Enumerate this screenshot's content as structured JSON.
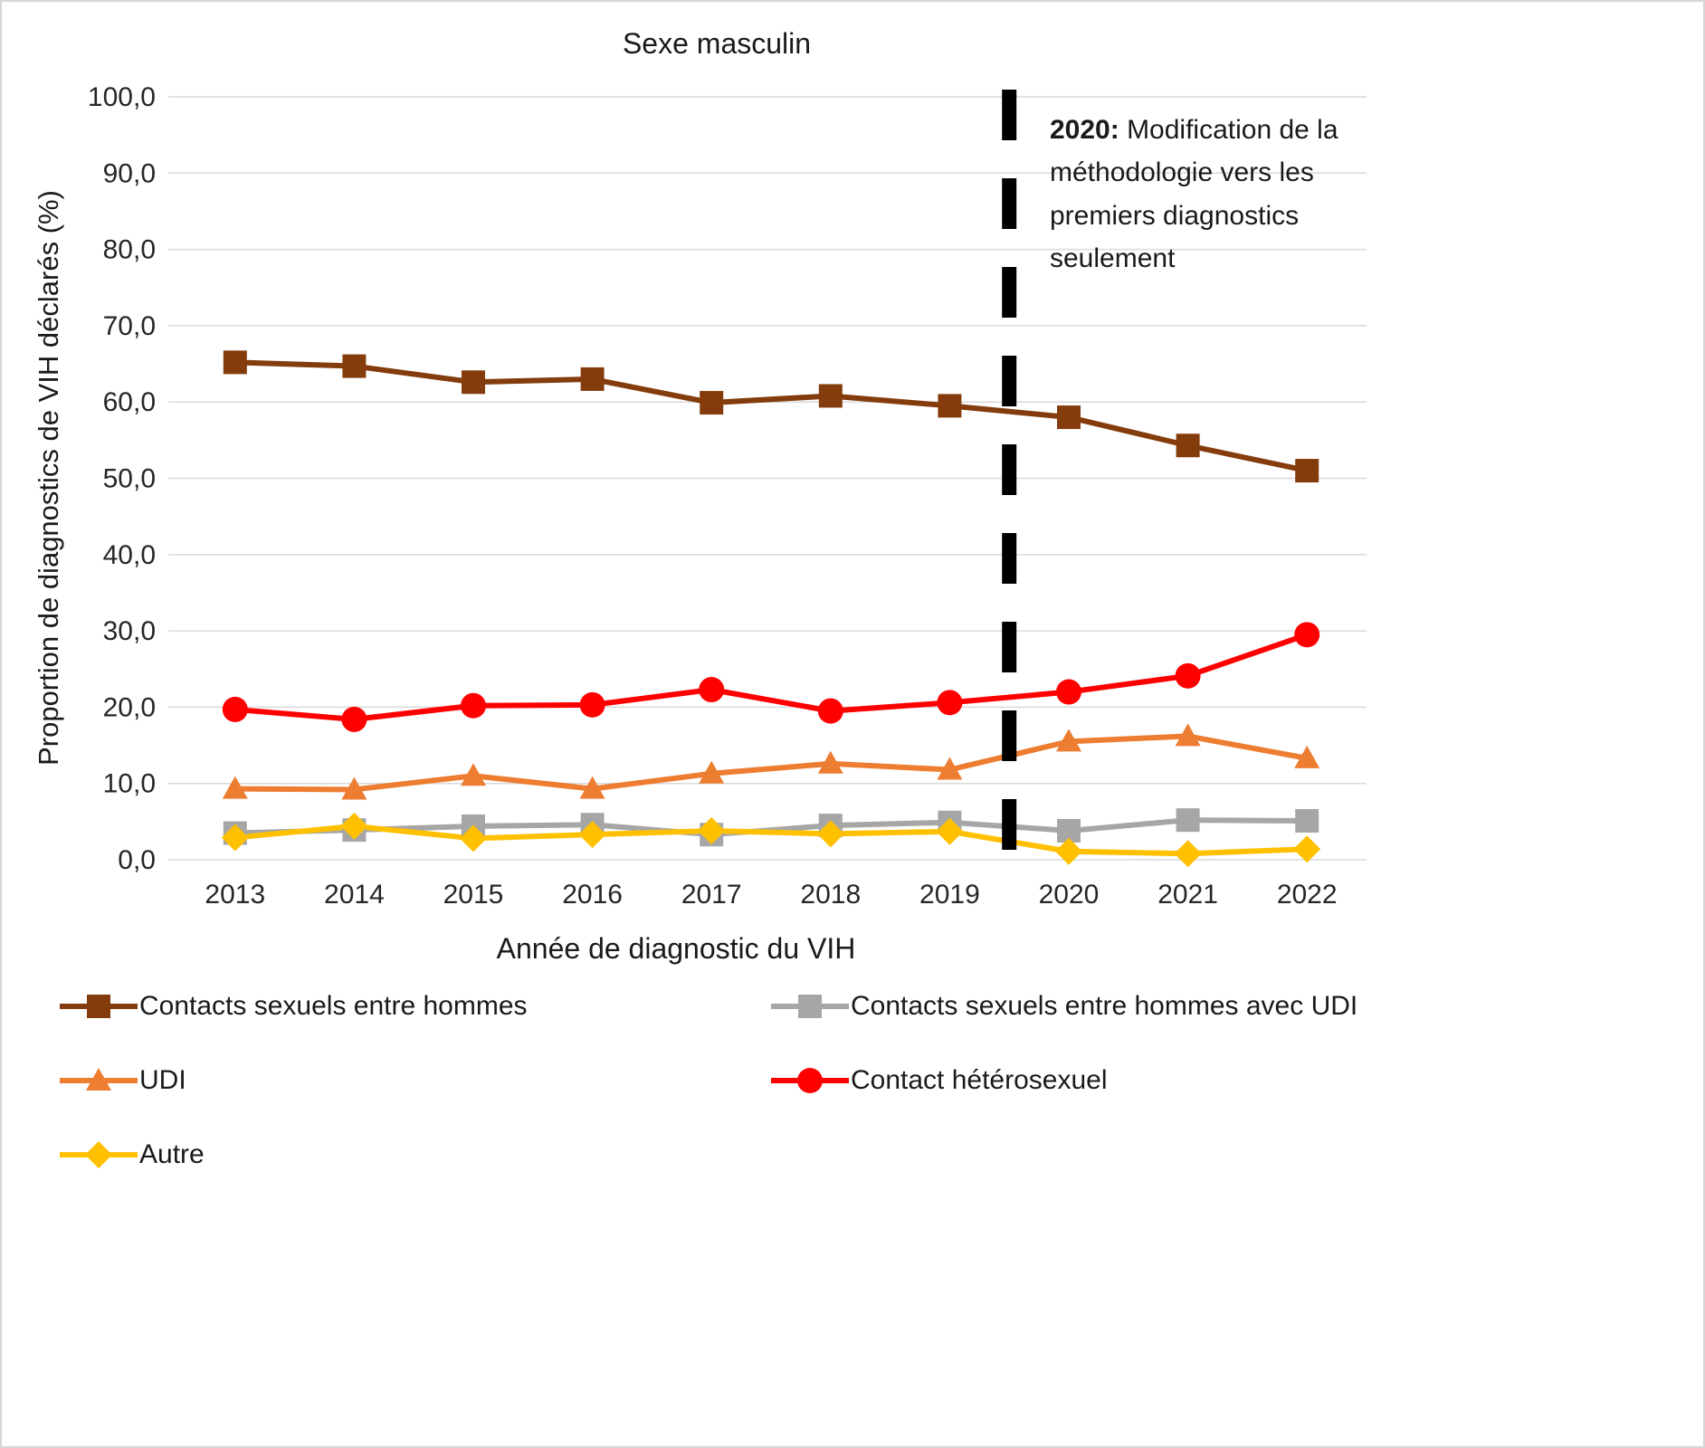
{
  "chart_data": {
    "type": "line",
    "title": "Sexe masculin",
    "xlabel": "Année de diagnostic du VIH",
    "ylabel": "Proportion de diagnostics de VIH déclarés (%)",
    "ylim": [
      0,
      100
    ],
    "ytick_step": 10,
    "ytick_labels": [
      "0,0",
      "10,0",
      "20,0",
      "30,0",
      "40,0",
      "50,0",
      "60,0",
      "70,0",
      "80,0",
      "90,0",
      "100,0"
    ],
    "categories": [
      "2013",
      "2014",
      "2015",
      "2016",
      "2017",
      "2018",
      "2019",
      "2020",
      "2021",
      "2022"
    ],
    "grid": "horizontal",
    "gridline_color": "#d9d9d9",
    "legend_position": "bottom",
    "annotation": {
      "bold": "2020:",
      "text": " Modification de la méthodologie vers les premiers diagnostics seulement",
      "dashed_line_between": [
        "2019",
        "2020"
      ],
      "dashed_line_after_index": 6,
      "line_color": "#000000"
    },
    "series": [
      {
        "name": "Contacts sexuels entre hommes",
        "color": "#843C0C",
        "marker": "square",
        "values": [
          65.2,
          64.7,
          62.6,
          63.0,
          59.9,
          60.8,
          59.5,
          58.0,
          54.3,
          51.0
        ]
      },
      {
        "name": "Contacts sexuels entre hommes avec UDI",
        "color": "#A6A6A6",
        "marker": "square",
        "values": [
          3.5,
          3.9,
          4.4,
          4.6,
          3.3,
          4.5,
          4.9,
          3.8,
          5.2,
          5.1
        ]
      },
      {
        "name": "UDI",
        "color": "#ED7D31",
        "marker": "triangle",
        "values": [
          9.3,
          9.2,
          11.0,
          9.3,
          11.3,
          12.6,
          11.8,
          15.5,
          16.2,
          13.3
        ]
      },
      {
        "name": "Contact hétérosexuel",
        "color": "#FF0000",
        "marker": "circle",
        "values": [
          19.7,
          18.4,
          20.2,
          20.3,
          22.3,
          19.5,
          20.6,
          22.0,
          24.1,
          29.5
        ]
      },
      {
        "name": "Autre",
        "color": "#FFC000",
        "marker": "diamond",
        "values": [
          2.9,
          4.4,
          2.8,
          3.3,
          3.8,
          3.4,
          3.7,
          1.1,
          0.8,
          1.4
        ]
      }
    ]
  }
}
